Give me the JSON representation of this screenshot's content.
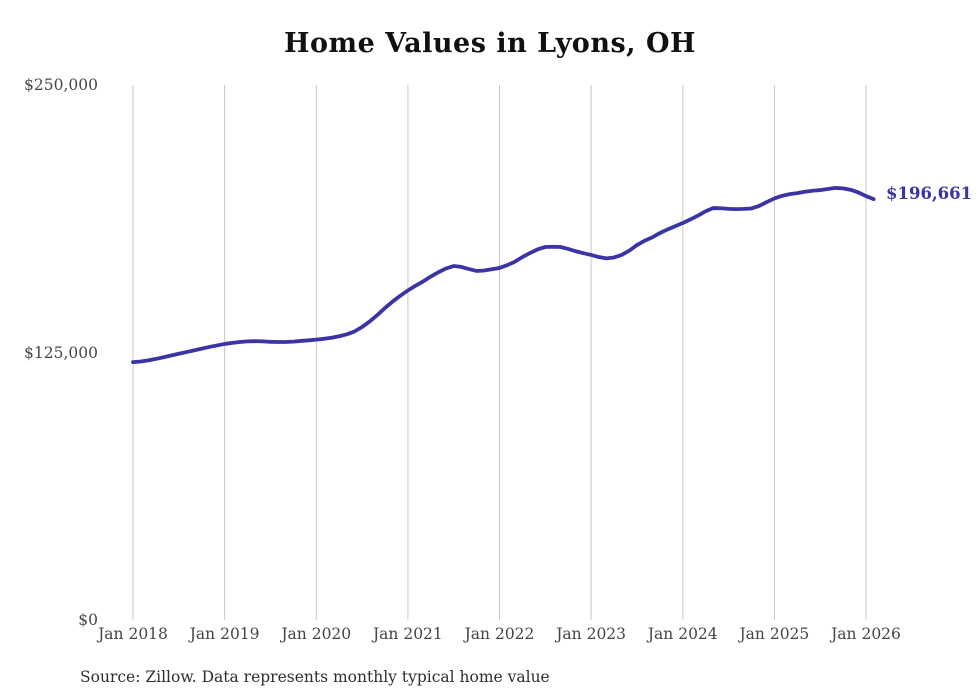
{
  "title": "Home Values in Lyons, OH",
  "source_note": "Source: Zillow. Data represents monthly typical home value",
  "end_label": "$196,661",
  "colors": {
    "line": "#3a34a5",
    "grid": "#c9c9c9",
    "axis_text": "#474747",
    "title_text": "#111111",
    "end_label_text": "#3a34a5",
    "source_text": "#2e2e2e",
    "background": "#ffffff"
  },
  "chart_data": {
    "type": "line",
    "title": "Home Values in Lyons, OH",
    "series_name": "Typical home value (monthly)",
    "legend": "none",
    "grid": "vertical-only",
    "ylim": [
      0,
      250000
    ],
    "y_ticks": [
      {
        "label": "$0",
        "value": 0
      },
      {
        "label": "$125,000",
        "value": 125000
      },
      {
        "label": "$250,000",
        "value": 250000
      }
    ],
    "x_tick_labels": [
      "Jan 2018",
      "Jan 2019",
      "Jan 2020",
      "Jan 2021",
      "Jan 2022",
      "Jan 2023",
      "Jan 2024",
      "Jan 2025",
      "Jan 2026"
    ],
    "final_value": 196661,
    "final_value_label": "$196,661",
    "months": [
      "2018-01",
      "2018-02",
      "2018-03",
      "2018-04",
      "2018-05",
      "2018-06",
      "2018-07",
      "2018-08",
      "2018-09",
      "2018-10",
      "2018-11",
      "2018-12",
      "2019-01",
      "2019-02",
      "2019-03",
      "2019-04",
      "2019-05",
      "2019-06",
      "2019-07",
      "2019-08",
      "2019-09",
      "2019-10",
      "2019-11",
      "2019-12",
      "2020-01",
      "2020-02",
      "2020-03",
      "2020-04",
      "2020-05",
      "2020-06",
      "2020-07",
      "2020-08",
      "2020-09",
      "2020-10",
      "2020-11",
      "2020-12",
      "2021-01",
      "2021-02",
      "2021-03",
      "2021-04",
      "2021-05",
      "2021-06",
      "2021-07",
      "2021-08",
      "2021-09",
      "2021-10",
      "2021-11",
      "2021-12",
      "2022-01",
      "2022-02",
      "2022-03",
      "2022-04",
      "2022-05",
      "2022-06",
      "2022-07",
      "2022-08",
      "2022-09",
      "2022-10",
      "2022-11",
      "2022-12",
      "2023-01",
      "2023-02",
      "2023-03",
      "2023-04",
      "2023-05",
      "2023-06",
      "2023-07",
      "2023-08",
      "2023-09",
      "2023-10",
      "2023-11",
      "2023-12",
      "2024-01",
      "2024-02",
      "2024-03",
      "2024-04",
      "2024-05",
      "2024-06",
      "2024-07",
      "2024-08",
      "2024-09",
      "2024-10",
      "2024-11",
      "2024-12",
      "2025-01",
      "2025-02",
      "2025-03",
      "2025-04",
      "2025-05",
      "2025-06",
      "2025-07",
      "2025-08",
      "2025-09",
      "2025-10",
      "2025-11",
      "2025-12",
      "2026-01",
      "2026-02"
    ],
    "values": [
      120500,
      120800,
      121300,
      122000,
      122800,
      123600,
      124400,
      125200,
      126000,
      126800,
      127600,
      128300,
      129000,
      129500,
      129900,
      130200,
      130300,
      130200,
      130000,
      129900,
      129900,
      130100,
      130400,
      130700,
      131000,
      131400,
      131900,
      132600,
      133500,
      134800,
      136900,
      139500,
      142500,
      145800,
      148800,
      151500,
      154000,
      156200,
      158200,
      160500,
      162500,
      164300,
      165400,
      165000,
      164000,
      163100,
      163300,
      163900,
      164500,
      165800,
      167400,
      169600,
      171500,
      173200,
      174300,
      174400,
      174300,
      173400,
      172300,
      171400,
      170600,
      169600,
      169000,
      169400,
      170600,
      172600,
      175200,
      177200,
      178800,
      180800,
      182500,
      184000,
      185500,
      187200,
      189000,
      191000,
      192500,
      192400,
      192100,
      192000,
      192100,
      192300,
      193500,
      195300,
      197000,
      198200,
      199000,
      199500,
      200100,
      200600,
      200900,
      201400,
      201900,
      201700,
      201000,
      199800,
      198100,
      196661
    ]
  }
}
